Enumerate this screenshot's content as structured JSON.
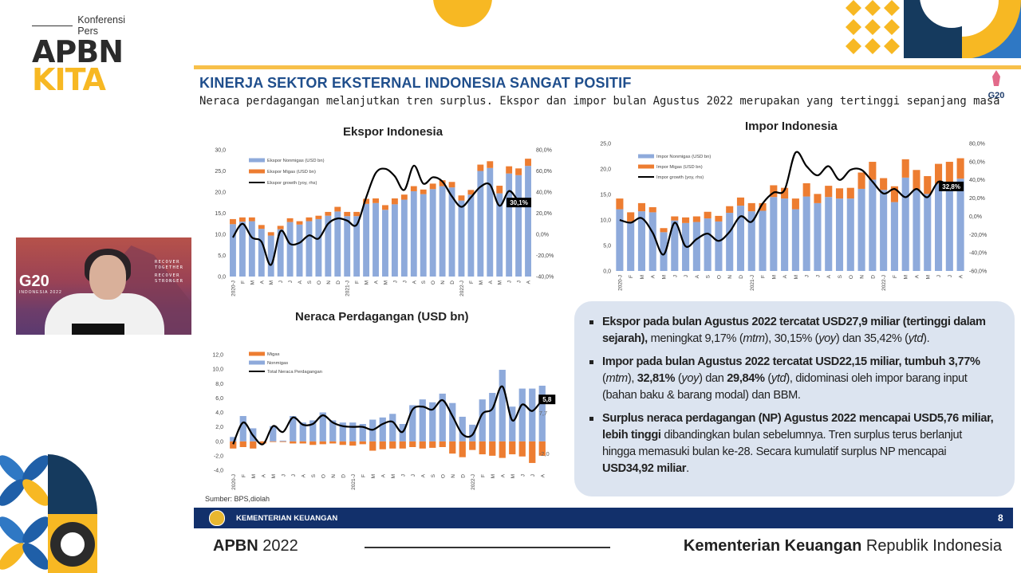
{
  "logo": {
    "prefix": "Konferensi Pers",
    "line1": "APBN",
    "line2": "KITA"
  },
  "slide": {
    "title": "KINERJA SEKTOR EKSTERNAL INDONESIA SANGAT POSITIF",
    "subtitle": "Neraca perdagangan melanjutkan tren surplus. Ekspor dan impor bulan Agustus 2022 merupakan yang tertinggi sepanjang masa",
    "g20_badge": "G20",
    "source": "Sumber: BPS,diolah"
  },
  "video": {
    "g20": "G20",
    "g20_sub": "INDONESIA 2022",
    "slogan": [
      "RECOVER",
      "TOGETHER",
      "RECOVER",
      "STRONGER"
    ]
  },
  "textbox": {
    "bullets": [
      [
        {
          "t": "Ekspor pada bulan Agustus 2022 tercatat USD27,9 miliar (tertinggi dalam sejarah),",
          "b": true
        },
        {
          "t": " meningkat 9,17% ("
        },
        {
          "t": "mtm",
          "i": true
        },
        {
          "t": "), 30,15% ("
        },
        {
          "t": "yoy",
          "i": true
        },
        {
          "t": ") dan 35,42% ("
        },
        {
          "t": "ytd",
          "i": true
        },
        {
          "t": ")."
        }
      ],
      [
        {
          "t": "Impor pada bulan Agustus 2022  tercatat USD22,15 miliar, tumbuh 3,77%",
          "b": true
        },
        {
          "t": " ("
        },
        {
          "t": "mtm",
          "i": true
        },
        {
          "t": "), "
        },
        {
          "t": "32,81%",
          "b": true
        },
        {
          "t": " ("
        },
        {
          "t": "yoy",
          "i": true
        },
        {
          "t": ") dan "
        },
        {
          "t": "29,84%",
          "b": true
        },
        {
          "t": " ("
        },
        {
          "t": "ytd",
          "i": true
        },
        {
          "t": "), didominasi oleh impor barang input (bahan baku & barang modal) dan BBM."
        }
      ],
      [
        {
          "t": "Surplus neraca perdagangan (NP) Agustus 2022 mencapai USD5,76 miliar, lebih tinggi",
          "b": true
        },
        {
          "t": " dibandingkan bulan sebelumnya. Tren surplus terus berlanjut hingga memasuki bulan ke-28. Secara kumulatif surplus NP mencapai "
        },
        {
          "t": "USD34,92 miliar",
          "b": true
        },
        {
          "t": "."
        }
      ]
    ]
  },
  "footer": {
    "ministry": "KEMENTERIAN KEUANGAN",
    "page": "8",
    "apbn_bold": "APBN",
    "apbn_year": " 2022",
    "kemenkeu_bold": "Kementerian Keuangan",
    "kemenkeu_rest": " Republik Indonesia"
  },
  "colors": {
    "nonmigas": "#8eaadb",
    "migas": "#ed7d31",
    "line": "#000000",
    "navy": "#12306b",
    "yellow": "#f7b823",
    "title_blue": "#1f4e8c"
  },
  "chart_data": [
    {
      "type": "bar",
      "title": "Ekspor Indonesia",
      "categories": [
        "2020-J",
        "F",
        "M",
        "A",
        "M",
        "J",
        "J",
        "A",
        "S",
        "O",
        "N",
        "D",
        "2021-J",
        "F",
        "M",
        "A",
        "M",
        "J",
        "J",
        "A",
        "S",
        "O",
        "N",
        "D",
        "2022-J",
        "F",
        "M",
        "A",
        "M",
        "J",
        "J",
        "A"
      ],
      "series": [
        {
          "name": "Ekspor Nonmigas (USD bn)",
          "kind": "stack",
          "color": "#8eaadb",
          "values": [
            12.4,
            13.0,
            13.1,
            11.3,
            9.7,
            11.2,
            12.9,
            12.3,
            13.1,
            13.6,
            14.4,
            15.4,
            14.3,
            14.3,
            17.2,
            17.4,
            15.8,
            17.1,
            18.2,
            20.2,
            19.5,
            20.7,
            21.4,
            21.1,
            18.0,
            19.4,
            25.0,
            25.7,
            19.7,
            24.4,
            24.0,
            26.2
          ]
        },
        {
          "name": "Ekspor Migas (USD bn)",
          "kind": "stack",
          "color": "#ed7d31",
          "values": [
            1.2,
            1.0,
            0.9,
            0.9,
            0.8,
            0.8,
            0.9,
            0.8,
            0.9,
            0.8,
            0.9,
            1.1,
            1.0,
            1.0,
            1.2,
            1.1,
            1.1,
            1.4,
            1.2,
            1.2,
            1.1,
            1.3,
            1.4,
            1.3,
            1.2,
            1.1,
            1.5,
            1.6,
            1.8,
            1.7,
            1.6,
            1.7
          ]
        },
        {
          "name": "Ekspor growth (yoy, rhs)",
          "kind": "line",
          "axis": "right",
          "color": "#000000",
          "values": [
            -3,
            10,
            -3,
            -7,
            -29,
            3,
            -9,
            -8,
            -1,
            -4,
            10,
            15,
            13,
            9,
            35,
            58,
            62,
            55,
            42,
            65,
            48,
            54,
            50,
            36,
            26,
            35,
            45,
            47,
            27,
            41,
            32,
            30.1
          ]
        }
      ],
      "ylim": [
        0,
        30
      ],
      "y_ticks": [
        "0,0",
        "5,0",
        "10,0",
        "15,0",
        "20,0",
        "25,0",
        "30,0"
      ],
      "y2lim": [
        -40,
        80
      ],
      "y2_ticks": [
        "-40,0%",
        "-20,0%",
        "0,0%",
        "20,0%",
        "40,0%",
        "60,0%",
        "80,0%"
      ],
      "annotations": [
        {
          "text": "30,1%",
          "series": 2,
          "point": 31,
          "style": "box"
        }
      ],
      "legend": "top-left",
      "grid": false
    },
    {
      "type": "bar",
      "title": "Impor Indonesia",
      "categories": [
        "2020-J",
        "F",
        "M",
        "A",
        "M",
        "J",
        "J",
        "A",
        "S",
        "O",
        "N",
        "D",
        "2021-J",
        "F",
        "M",
        "A",
        "M",
        "J",
        "J",
        "A",
        "S",
        "O",
        "N",
        "D",
        "2022-J",
        "F",
        "M",
        "A",
        "M",
        "J",
        "J",
        "A"
      ],
      "series": [
        {
          "name": "Impor Nonmigas (USD bn)",
          "kind": "stack",
          "color": "#8eaadb",
          "values": [
            12.1,
            9.7,
            11.7,
            11.5,
            7.6,
            9.9,
            9.4,
            9.6,
            10.3,
            9.7,
            11.4,
            12.8,
            11.7,
            11.8,
            14.5,
            14.2,
            12.1,
            14.6,
            13.3,
            14.5,
            14.2,
            14.2,
            16.1,
            17.9,
            15.9,
            13.5,
            18.3,
            16.0,
            15.1,
            17.1,
            17.5,
            18.1
          ]
        },
        {
          "name": "Impor Migas (USD bn)",
          "kind": "stack",
          "color": "#ed7d31",
          "values": [
            2.1,
            1.8,
            1.6,
            1.0,
            0.8,
            0.8,
            1.1,
            1.1,
            1.3,
            1.1,
            1.3,
            1.6,
            1.6,
            1.5,
            2.3,
            2.1,
            2.1,
            2.6,
            1.8,
            2.2,
            2.0,
            2.1,
            3.2,
            3.5,
            2.3,
            3.1,
            3.6,
            3.8,
            3.5,
            3.9,
            3.9,
            4.0
          ]
        },
        {
          "name": "Impor growth (yoy, rhs)",
          "kind": "line",
          "axis": "right",
          "color": "#000000",
          "values": [
            -4,
            -7,
            -2,
            -18,
            -42,
            -7,
            -33,
            -25,
            -19,
            -27,
            -17,
            0,
            -6,
            14,
            26,
            29,
            70,
            55,
            45,
            55,
            40,
            51,
            51,
            38,
            25,
            30,
            21,
            30,
            21,
            38,
            33,
            32.8
          ]
        }
      ],
      "ylim": [
        0,
        25
      ],
      "y_ticks": [
        "0,0",
        "5,0",
        "10,0",
        "15,0",
        "20,0",
        "25,0"
      ],
      "y2lim": [
        -60,
        80
      ],
      "y2_ticks": [
        "-60,0%",
        "-40,0%",
        "-20,0%",
        "0,0%",
        "20,0%",
        "40,0%",
        "60,0%",
        "80,0%"
      ],
      "annotations": [
        {
          "text": "32,8%",
          "series": 2,
          "point": 31,
          "style": "box"
        }
      ],
      "legend": "top-left",
      "grid": false
    },
    {
      "type": "bar",
      "title": "Neraca Perdagangan (USD bn)",
      "categories": [
        "2020-J",
        "F",
        "M",
        "A",
        "M",
        "J",
        "J",
        "A",
        "S",
        "O",
        "N",
        "D",
        "2021-J",
        "F",
        "M",
        "A",
        "M",
        "J",
        "J",
        "A",
        "S",
        "O",
        "N",
        "D",
        "2022-J",
        "F",
        "M",
        "A",
        "M",
        "J",
        "J",
        "A"
      ],
      "series": [
        {
          "name": "Migas",
          "kind": "stack",
          "color": "#ed7d31",
          "values": [
            -1.0,
            -0.8,
            -1.0,
            -0.3,
            -0.1,
            -0.1,
            -0.3,
            -0.3,
            -0.5,
            -0.4,
            -0.3,
            -0.5,
            -0.6,
            -0.4,
            -1.3,
            -1.1,
            -1.0,
            -1.0,
            -0.8,
            -1.0,
            -0.9,
            -0.8,
            -1.7,
            -2.2,
            -1.2,
            -1.8,
            -2.0,
            -2.3,
            -1.8,
            -2.1,
            -3.0,
            -2.0
          ]
        },
        {
          "name": "Nonmigas",
          "kind": "stack",
          "color": "#8eaadb",
          "values": [
            0.6,
            3.5,
            1.8,
            0.0,
            2.1,
            0.1,
            3.5,
            2.6,
            2.9,
            4.0,
            2.9,
            2.6,
            2.6,
            2.4,
            3.0,
            3.3,
            3.8,
            2.4,
            5.0,
            5.8,
            5.4,
            6.6,
            5.3,
            3.4,
            2.3,
            5.8,
            6.7,
            9.9,
            4.8,
            7.3,
            7.3,
            7.7
          ]
        },
        {
          "name": "Total Neraca Perdagangan",
          "kind": "line",
          "axis": "left",
          "color": "#000000",
          "values": [
            -0.4,
            2.6,
            0.8,
            -0.4,
            2.1,
            1.3,
            3.3,
            2.3,
            2.4,
            3.6,
            2.6,
            2.1,
            2.0,
            2.0,
            1.6,
            2.4,
            2.7,
            1.3,
            4.4,
            4.8,
            4.4,
            5.7,
            3.5,
            1.0,
            0.9,
            3.8,
            4.5,
            7.6,
            2.9,
            5.1,
            4.2,
            5.8
          ]
        }
      ],
      "ylim": [
        -4,
        12
      ],
      "y_ticks": [
        "-4,0",
        "-2,0",
        "0,0",
        "2,0",
        "4,0",
        "6,0",
        "8,0",
        "10,0",
        "12,0"
      ],
      "annotations": [
        {
          "text": "5,8",
          "series": 2,
          "point": 31,
          "style": "box"
        },
        {
          "text": "7,7",
          "series": 1,
          "point": 31,
          "style": "plain-below"
        },
        {
          "text": "-2,0",
          "series": 0,
          "point": 31,
          "style": "plain"
        }
      ],
      "legend": "top-left",
      "grid": false
    }
  ]
}
